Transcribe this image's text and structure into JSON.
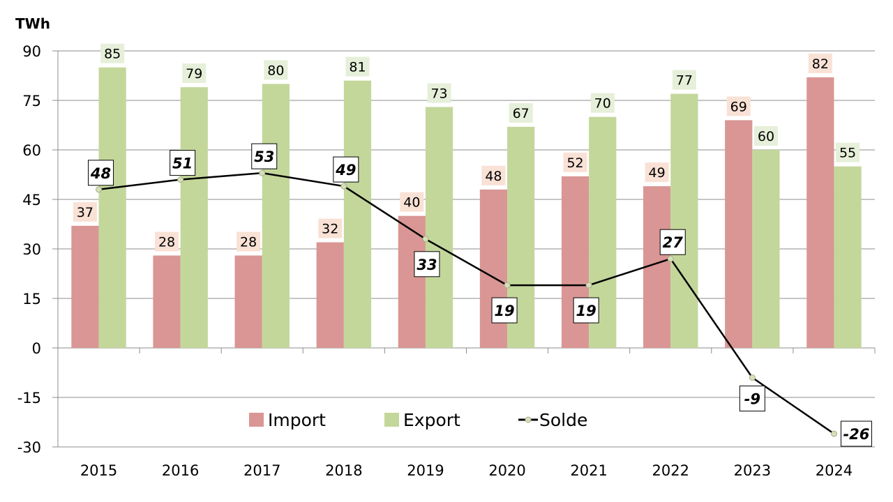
{
  "chart_data": {
    "type": "bar",
    "title": "",
    "unit_label": "TWh",
    "xlabel": "",
    "ylabel": "TWh",
    "categories": [
      "2015",
      "2016",
      "2017",
      "2018",
      "2019",
      "2020",
      "2021",
      "2022",
      "2023",
      "2024"
    ],
    "ylim": [
      -30,
      90
    ],
    "yticks": [
      90,
      75,
      60,
      45,
      30,
      15,
      0,
      -15,
      -30
    ],
    "grid": true,
    "legend_position": "bottom-inside",
    "series": [
      {
        "name": "Import",
        "type": "bar",
        "color": "#d99694",
        "label_bg": "#f9e1d6",
        "values": [
          37,
          28,
          28,
          32,
          40,
          48,
          52,
          49,
          69,
          82
        ]
      },
      {
        "name": "Export",
        "type": "bar",
        "color": "#c4d79b",
        "label_bg": "#e6efd9",
        "values": [
          85,
          79,
          80,
          81,
          73,
          67,
          70,
          77,
          60,
          55
        ]
      },
      {
        "name": "Solde",
        "type": "line",
        "color": "#000000",
        "marker_color": "#d7dfb8",
        "values": [
          48,
          51,
          53,
          49,
          33,
          19,
          19,
          27,
          -9,
          -26
        ]
      }
    ]
  }
}
